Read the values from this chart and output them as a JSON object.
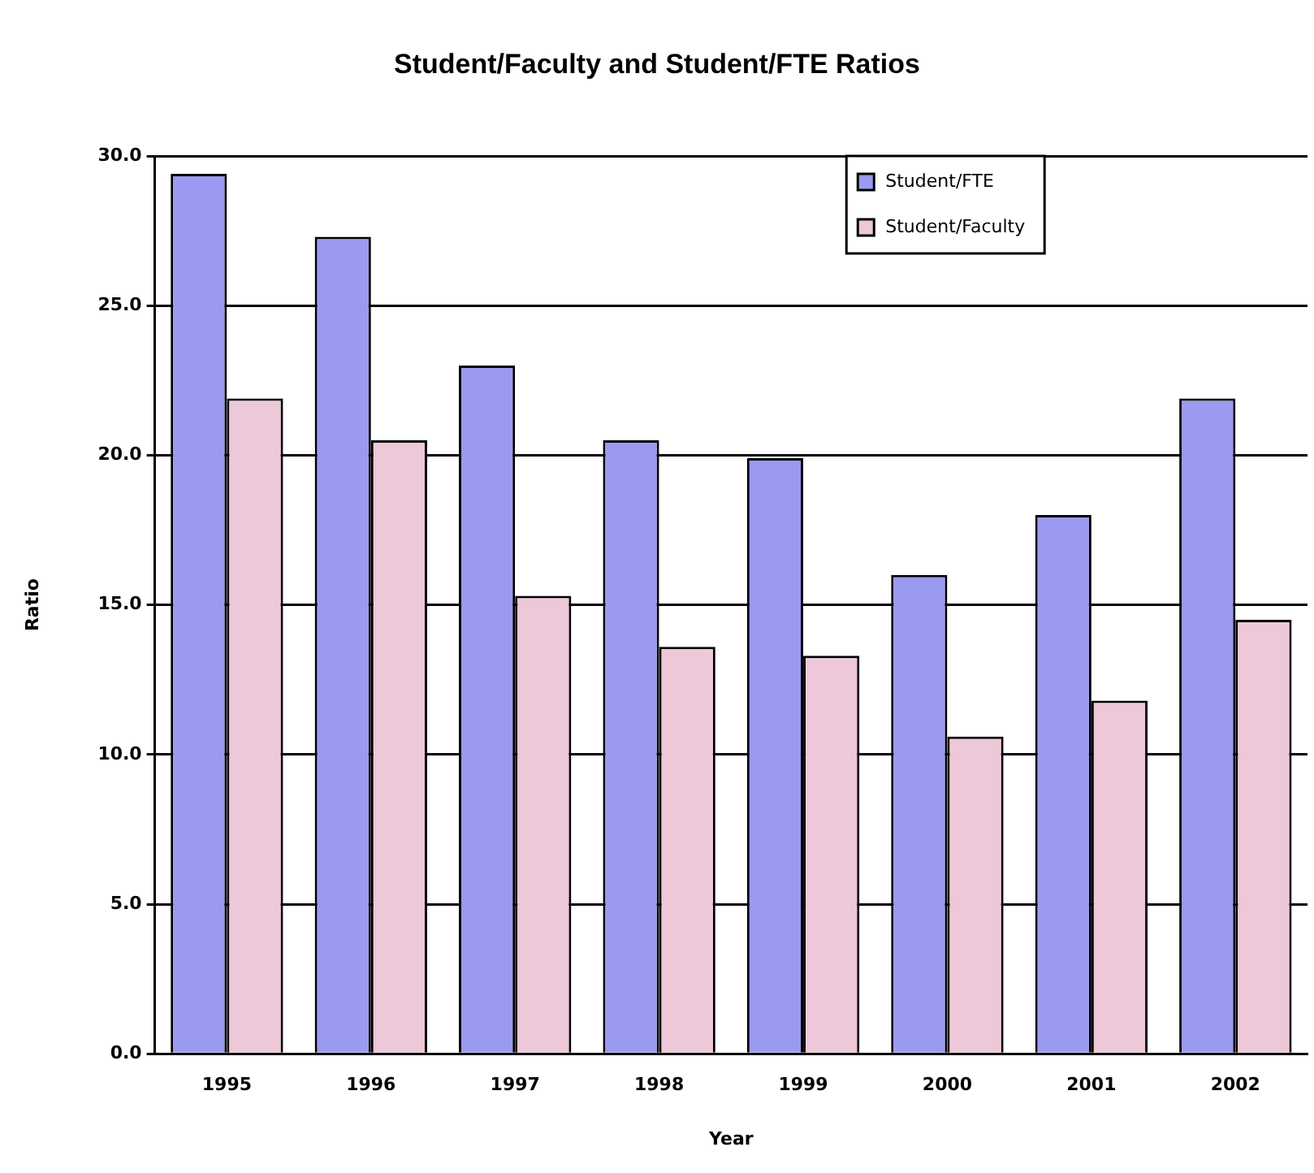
{
  "chart_data": {
    "type": "bar",
    "title": "Student/Faculty and Student/FTE Ratios",
    "xlabel": "Year",
    "ylabel": "Ratio",
    "categories": [
      "1995",
      "1996",
      "1997",
      "1998",
      "1999",
      "2000",
      "2001",
      "2002"
    ],
    "series": [
      {
        "name": "Student/FTE",
        "color": "#9a9af0",
        "values": [
          29.4,
          27.3,
          23.0,
          20.5,
          19.9,
          16.0,
          18.0,
          21.9
        ]
      },
      {
        "name": "Student/Faculty",
        "color": "#ecc8d8",
        "values": [
          21.9,
          20.5,
          15.3,
          13.6,
          13.3,
          10.6,
          11.8,
          14.5
        ]
      }
    ],
    "ylim": [
      0,
      30
    ],
    "yticks": [
      {
        "value": 0,
        "label": "0.0"
      },
      {
        "value": 5,
        "label": "5.0"
      },
      {
        "value": 10,
        "label": "10.0"
      },
      {
        "value": 15,
        "label": "15.0"
      },
      {
        "value": 20,
        "label": "20.0"
      },
      {
        "value": 25,
        "label": "25.0"
      },
      {
        "value": 30,
        "label": "30.0"
      }
    ],
    "grid": "y",
    "legend": "top right"
  }
}
